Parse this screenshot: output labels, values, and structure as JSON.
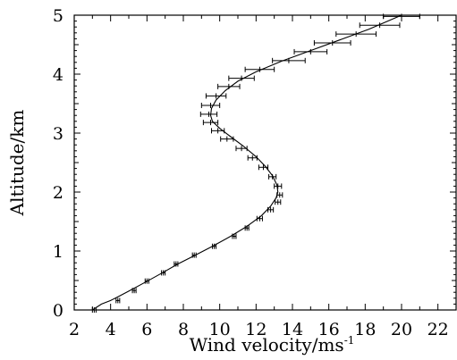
{
  "chart_data": {
    "type": "line",
    "xlabel": "Wind velocity/ms",
    "xlabel_superscript": "-1",
    "ylabel": "Altitude/km",
    "xlim": [
      2,
      23
    ],
    "ylim": [
      0,
      5
    ],
    "x_ticks": [
      2,
      4,
      6,
      8,
      10,
      12,
      14,
      16,
      18,
      20,
      22
    ],
    "y_ticks": [
      0,
      1,
      2,
      3,
      4,
      5
    ],
    "grid": false,
    "series": [
      {
        "kind": "fitted-curve",
        "points": [
          {
            "x": 3.0,
            "y": 0.0
          },
          {
            "x": 3.5,
            "y": 0.1
          },
          {
            "x": 4.0,
            "y": 0.16
          },
          {
            "x": 4.5,
            "y": 0.24
          },
          {
            "x": 5.0,
            "y": 0.32
          },
          {
            "x": 5.6,
            "y": 0.42
          },
          {
            "x": 6.2,
            "y": 0.52
          },
          {
            "x": 6.9,
            "y": 0.64
          },
          {
            "x": 7.7,
            "y": 0.78
          },
          {
            "x": 8.6,
            "y": 0.92
          },
          {
            "x": 9.6,
            "y": 1.08
          },
          {
            "x": 10.6,
            "y": 1.25
          },
          {
            "x": 11.5,
            "y": 1.42
          },
          {
            "x": 12.3,
            "y": 1.6
          },
          {
            "x": 12.8,
            "y": 1.76
          },
          {
            "x": 13.1,
            "y": 1.9
          },
          {
            "x": 13.2,
            "y": 2.0
          },
          {
            "x": 13.15,
            "y": 2.12
          },
          {
            "x": 12.9,
            "y": 2.28
          },
          {
            "x": 12.5,
            "y": 2.44
          },
          {
            "x": 12.0,
            "y": 2.6
          },
          {
            "x": 11.3,
            "y": 2.78
          },
          {
            "x": 10.6,
            "y": 2.94
          },
          {
            "x": 10.0,
            "y": 3.08
          },
          {
            "x": 9.6,
            "y": 3.2
          },
          {
            "x": 9.5,
            "y": 3.3
          },
          {
            "x": 9.55,
            "y": 3.42
          },
          {
            "x": 9.8,
            "y": 3.56
          },
          {
            "x": 10.3,
            "y": 3.72
          },
          {
            "x": 11.0,
            "y": 3.88
          },
          {
            "x": 12.0,
            "y": 4.04
          },
          {
            "x": 13.4,
            "y": 4.22
          },
          {
            "x": 15.0,
            "y": 4.4
          },
          {
            "x": 16.6,
            "y": 4.58
          },
          {
            "x": 18.2,
            "y": 4.76
          },
          {
            "x": 20.0,
            "y": 5.0
          }
        ]
      },
      {
        "kind": "measurements-with-horizontal-error-bars",
        "points": [
          {
            "y": 0.0,
            "x": 3.1,
            "err": 0.1
          },
          {
            "y": 0.16,
            "x": 4.4,
            "err": 0.1
          },
          {
            "y": 0.33,
            "x": 5.3,
            "err": 0.1
          },
          {
            "y": 0.49,
            "x": 6.0,
            "err": 0.1
          },
          {
            "y": 0.63,
            "x": 6.9,
            "err": 0.1
          },
          {
            "y": 0.78,
            "x": 7.6,
            "err": 0.1
          },
          {
            "y": 0.93,
            "x": 8.6,
            "err": 0.1
          },
          {
            "y": 1.08,
            "x": 9.7,
            "err": 0.1
          },
          {
            "y": 1.25,
            "x": 10.8,
            "err": 0.1
          },
          {
            "y": 1.39,
            "x": 11.5,
            "err": 0.1
          },
          {
            "y": 1.55,
            "x": 12.2,
            "err": 0.15
          },
          {
            "y": 1.7,
            "x": 12.8,
            "err": 0.15
          },
          {
            "y": 1.83,
            "x": 13.2,
            "err": 0.15
          },
          {
            "y": 1.95,
            "x": 13.3,
            "err": 0.15
          },
          {
            "y": 2.1,
            "x": 13.2,
            "err": 0.2
          },
          {
            "y": 2.26,
            "x": 12.9,
            "err": 0.2
          },
          {
            "y": 2.42,
            "x": 12.4,
            "err": 0.25
          },
          {
            "y": 2.58,
            "x": 11.8,
            "err": 0.25
          },
          {
            "y": 2.74,
            "x": 11.2,
            "err": 0.3
          },
          {
            "y": 2.9,
            "x": 10.4,
            "err": 0.35
          },
          {
            "y": 3.04,
            "x": 9.9,
            "err": 0.35
          },
          {
            "y": 3.18,
            "x": 9.5,
            "err": 0.4
          },
          {
            "y": 3.32,
            "x": 9.4,
            "err": 0.45
          },
          {
            "y": 3.47,
            "x": 9.5,
            "err": 0.5
          },
          {
            "y": 3.63,
            "x": 9.8,
            "err": 0.55
          },
          {
            "y": 3.79,
            "x": 10.5,
            "err": 0.6
          },
          {
            "y": 3.93,
            "x": 11.2,
            "err": 0.7
          },
          {
            "y": 4.08,
            "x": 12.2,
            "err": 0.8
          },
          {
            "y": 4.23,
            "x": 13.8,
            "err": 0.9
          },
          {
            "y": 4.38,
            "x": 15.0,
            "err": 0.9
          },
          {
            "y": 4.53,
            "x": 16.2,
            "err": 1.0
          },
          {
            "y": 4.68,
            "x": 17.5,
            "err": 1.1
          },
          {
            "y": 4.83,
            "x": 18.8,
            "err": 1.1
          },
          {
            "y": 4.98,
            "x": 20.0,
            "err": 1.0
          }
        ]
      }
    ]
  }
}
